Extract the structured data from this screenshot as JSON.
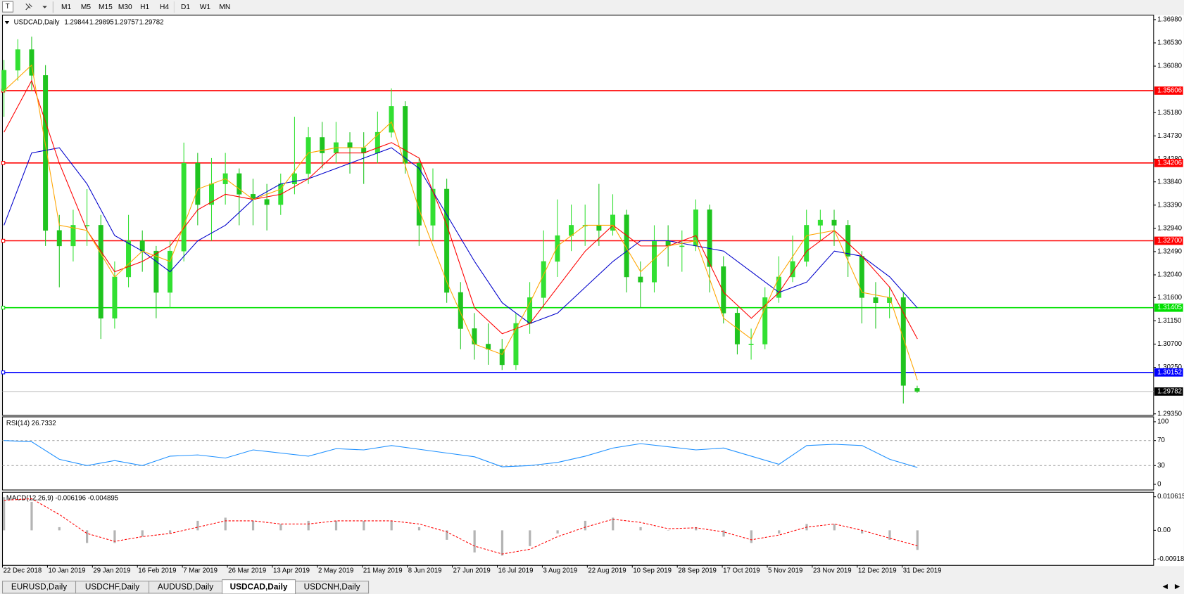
{
  "toolbar": {
    "timeframes": [
      "M1",
      "M5",
      "M15",
      "M30",
      "H1",
      "H4",
      "D1",
      "W1",
      "MN"
    ]
  },
  "chart_data": [
    {
      "type": "candlestick",
      "title": "USDCAD,Daily",
      "header_values": [
        1.29844,
        1.29895,
        1.29757,
        1.29782
      ],
      "x_labels": [
        "22 Dec 2018",
        "10 Jan 2019",
        "29 Jan 2019",
        "16 Feb 2019",
        "7 Mar 2019",
        "26 Mar 2019",
        "13 Apr 2019",
        "2 May 2019",
        "21 May 2019",
        "8 Jun 2019",
        "27 Jun 2019",
        "16 Jul 2019",
        "3 Aug 2019",
        "22 Aug 2019",
        "10 Sep 2019",
        "28 Sep 2019",
        "17 Oct 2019",
        "5 Nov 2019",
        "23 Nov 2019",
        "12 Dec 2019",
        "31 Dec 2019"
      ],
      "open": [
        1.356,
        1.36,
        1.364,
        1.359,
        1.329,
        1.326,
        1.33,
        1.33,
        1.312,
        1.32,
        1.327,
        1.325,
        1.317,
        1.325,
        1.342,
        1.334,
        1.338,
        1.34,
        1.336,
        1.335,
        1.334,
        1.338,
        1.34,
        1.347,
        1.344,
        1.346,
        1.345,
        1.344,
        1.348,
        1.353,
        1.342,
        1.33,
        1.337,
        1.317,
        1.31,
        1.307,
        1.306,
        1.303,
        1.311,
        1.316,
        1.323,
        1.328,
        1.33,
        1.33,
        1.329,
        1.332,
        1.32,
        1.319,
        1.327,
        1.326,
        1.326,
        1.333,
        1.322,
        1.313,
        1.307,
        1.307,
        1.316,
        1.32,
        1.323,
        1.33,
        1.331,
        1.33,
        1.324,
        1.316,
        1.315,
        1.316,
        1.29844
      ],
      "high": [
        1.362,
        1.366,
        1.3665,
        1.361,
        1.332,
        1.333,
        1.337,
        1.332,
        1.323,
        1.332,
        1.329,
        1.326,
        1.327,
        1.346,
        1.344,
        1.343,
        1.344,
        1.341,
        1.339,
        1.338,
        1.34,
        1.351,
        1.349,
        1.35,
        1.35,
        1.348,
        1.348,
        1.352,
        1.3565,
        1.354,
        1.343,
        1.341,
        1.339,
        1.319,
        1.313,
        1.311,
        1.308,
        1.313,
        1.319,
        1.329,
        1.335,
        1.334,
        1.334,
        1.338,
        1.336,
        1.333,
        1.323,
        1.33,
        1.33,
        1.329,
        1.335,
        1.334,
        1.324,
        1.314,
        1.31,
        1.318,
        1.324,
        1.328,
        1.333,
        1.333,
        1.333,
        1.331,
        1.325,
        1.319,
        1.318,
        1.317,
        1.29895
      ],
      "low": [
        1.351,
        1.358,
        1.356,
        1.326,
        1.318,
        1.323,
        1.326,
        1.308,
        1.31,
        1.318,
        1.321,
        1.312,
        1.314,
        1.323,
        1.33,
        1.327,
        1.334,
        1.33,
        1.33,
        1.329,
        1.332,
        1.336,
        1.338,
        1.341,
        1.342,
        1.34,
        1.338,
        1.342,
        1.347,
        1.34,
        1.326,
        1.327,
        1.315,
        1.306,
        1.304,
        1.303,
        1.302,
        1.302,
        1.309,
        1.314,
        1.32,
        1.325,
        1.326,
        1.326,
        1.328,
        1.317,
        1.314,
        1.317,
        1.322,
        1.321,
        1.325,
        1.317,
        1.311,
        1.305,
        1.304,
        1.306,
        1.315,
        1.319,
        1.322,
        1.327,
        1.326,
        1.32,
        1.311,
        1.31,
        1.312,
        1.2955,
        1.29757
      ],
      "close": [
        1.36,
        1.364,
        1.359,
        1.329,
        1.326,
        1.33,
        1.33,
        1.312,
        1.32,
        1.327,
        1.325,
        1.317,
        1.325,
        1.342,
        1.334,
        1.338,
        1.34,
        1.336,
        1.335,
        1.334,
        1.338,
        1.34,
        1.347,
        1.344,
        1.346,
        1.345,
        1.344,
        1.348,
        1.353,
        1.342,
        1.33,
        1.337,
        1.317,
        1.31,
        1.307,
        1.306,
        1.303,
        1.311,
        1.316,
        1.323,
        1.328,
        1.33,
        1.33,
        1.329,
        1.332,
        1.32,
        1.319,
        1.327,
        1.326,
        1.326,
        1.333,
        1.322,
        1.313,
        1.307,
        1.307,
        1.316,
        1.32,
        1.323,
        1.33,
        1.331,
        1.33,
        1.324,
        1.316,
        1.315,
        1.316,
        1.299,
        1.29782
      ],
      "up_color": "#32e032",
      "down_color": "#1fc41f",
      "lines": [
        {
          "color": "#0000cc",
          "values": [
            1.33,
            1.344,
            1.345,
            1.338,
            1.328,
            1.325,
            1.321,
            1.327,
            1.33,
            1.335,
            1.338,
            1.339,
            1.341,
            1.343,
            1.345,
            1.341,
            1.332,
            1.323,
            1.315,
            1.311,
            1.313,
            1.318,
            1.323,
            1.327,
            1.327,
            1.326,
            1.325,
            1.321,
            1.317,
            1.319,
            1.325,
            1.324,
            1.32,
            1.314
          ]
        },
        {
          "color": "#ff0000",
          "values": [
            1.348,
            1.358,
            1.342,
            1.329,
            1.321,
            1.323,
            1.326,
            1.333,
            1.336,
            1.335,
            1.336,
            1.339,
            1.344,
            1.344,
            1.346,
            1.343,
            1.33,
            1.314,
            1.309,
            1.311,
            1.318,
            1.325,
            1.33,
            1.326,
            1.326,
            1.328,
            1.317,
            1.312,
            1.317,
            1.325,
            1.329,
            1.324,
            1.318,
            1.308
          ]
        },
        {
          "color": "#ffa500",
          "values": [
            1.356,
            1.361,
            1.33,
            1.329,
            1.32,
            1.325,
            1.323,
            1.337,
            1.339,
            1.335,
            1.337,
            1.344,
            1.345,
            1.345,
            1.35,
            1.333,
            1.319,
            1.307,
            1.305,
            1.315,
            1.326,
            1.33,
            1.33,
            1.321,
            1.326,
            1.327,
            1.312,
            1.308,
            1.32,
            1.328,
            1.329,
            1.317,
            1.316,
            1.3
          ]
        }
      ],
      "levels": [
        {
          "value": 1.35606,
          "color": "#ff0000"
        },
        {
          "value": 1.34206,
          "color": "#ff0000"
        },
        {
          "value": 1.327,
          "label": "1.32700",
          "color": "#ff0000"
        },
        {
          "value": 1.31405,
          "color": "#00e000"
        },
        {
          "value": 1.30152,
          "color": "#0000ff"
        }
      ],
      "current_price": 1.29782,
      "ylim": [
        1.29321,
        1.37068
      ],
      "yticks": [
        {
          "value": 1.3698,
          "label": "1.36980"
        },
        {
          "value": 1.3653,
          "label": "1.36530"
        },
        {
          "value": 1.3608,
          "label": "1.36080"
        },
        {
          "value": 1.3518,
          "label": "1.35180"
        },
        {
          "value": 1.3473,
          "label": "1.34730"
        },
        {
          "value": 1.3428,
          "label": "1.34280"
        },
        {
          "value": 1.3384,
          "label": "1.33840"
        },
        {
          "value": 1.3339,
          "label": "1.33390"
        },
        {
          "value": 1.3294,
          "label": "1.32940"
        },
        {
          "value": 1.3249,
          "label": "1.32490"
        },
        {
          "value": 1.3204,
          "label": "1.32040"
        },
        {
          "value": 1.316,
          "label": "1.31600"
        },
        {
          "value": 1.3115,
          "label": "1.31150"
        },
        {
          "value": 1.307,
          "label": "1.30700"
        },
        {
          "value": 1.3025,
          "label": "1.30250"
        },
        {
          "value": 1.2935,
          "label": "1.29350"
        }
      ]
    },
    {
      "type": "line",
      "title": "RSI(14) 26.7332",
      "color": "#1e90ff",
      "values": [
        70,
        68,
        40,
        30,
        38,
        30,
        45,
        47,
        42,
        55,
        50,
        45,
        57,
        55,
        62,
        56,
        50,
        44,
        28,
        30,
        35,
        45,
        58,
        65,
        60,
        55,
        58,
        45,
        32,
        62,
        64,
        62,
        40,
        27
      ],
      "levels": [
        70,
        30
      ],
      "ylim": [
        -9,
        107.8
      ],
      "yticks": [
        100,
        70,
        30,
        0
      ]
    },
    {
      "type": "macd",
      "title": "MACD(12,26,9) -0.006196 -0.004895",
      "histogram_color": "#b4b4b4",
      "signal_color": "#ff0000",
      "histogram": [
        0.0105,
        0.009,
        0.001,
        -0.004,
        -0.004,
        -0.002,
        -0.001,
        0.003,
        0.004,
        0.003,
        0.002,
        0.003,
        0.003,
        0.003,
        0.003,
        0.001,
        -0.003,
        -0.007,
        -0.008,
        -0.005,
        -0.001,
        0.003,
        0.004,
        0.001,
        0.0,
        0.001,
        -0.002,
        -0.004,
        -0.001,
        0.002,
        0.002,
        -0.001,
        -0.003,
        -0.0062
      ],
      "signal": [
        0.0095,
        0.01,
        0.005,
        -0.001,
        -0.0035,
        -0.002,
        -0.001,
        0.001,
        0.003,
        0.003,
        0.002,
        0.002,
        0.003,
        0.003,
        0.003,
        0.002,
        -0.0005,
        -0.005,
        -0.0075,
        -0.006,
        -0.002,
        0.001,
        0.0035,
        0.0025,
        0.0005,
        0.0008,
        -0.0005,
        -0.003,
        -0.0015,
        0.001,
        0.002,
        0.0,
        -0.0025,
        -0.0049
      ],
      "ylim": [
        -0.01109,
        0.01205
      ],
      "yticks": [
        0.010615,
        {
          "value": 0,
          "label": "0.00"
        },
        -0.00918
      ]
    }
  ],
  "tabs": [
    "EURUSD,Daily",
    "USDCHF,Daily",
    "AUDUSD,Daily",
    "USDCAD,Daily",
    "USDCNH,Daily"
  ],
  "active_tab": 3
}
